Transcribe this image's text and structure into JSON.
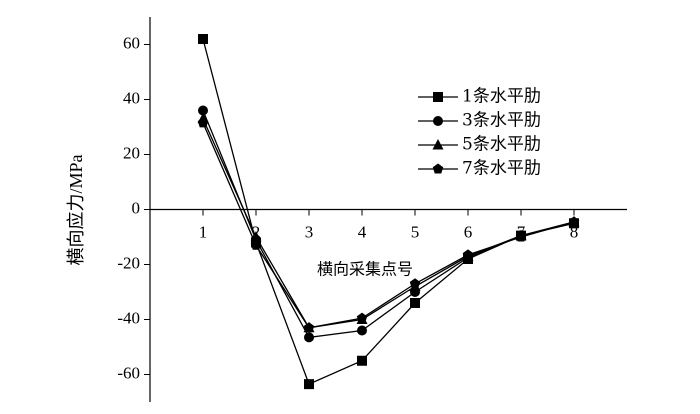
{
  "chart_data": {
    "type": "line",
    "x_label": "横向采集点号",
    "y_label": "横向应力/MPa",
    "x": [
      1,
      2,
      3,
      4,
      5,
      6,
      7,
      8
    ],
    "series": [
      {
        "name": "1条水平肋",
        "color": "#000000",
        "marker": "square",
        "values": [
          62,
          -12,
          -63.5,
          -55,
          -34,
          -18,
          -9.5,
          -5
        ]
      },
      {
        "name": "3条水平肋",
        "color": "#000000",
        "marker": "circle",
        "values": [
          36,
          -11,
          -46.5,
          -44,
          -30,
          -17.5,
          -9.5,
          -5
        ]
      },
      {
        "name": "5条水平肋",
        "color": "#000000",
        "marker": "triangle",
        "values": [
          33,
          -10,
          -43,
          -40,
          -28,
          -17,
          -9.5,
          -4.5
        ]
      },
      {
        "name": "7条水平肋",
        "color": "#000000",
        "marker": "pentagon",
        "values": [
          31.5,
          -13,
          -43,
          -39.5,
          -27,
          -16.5,
          -10,
          -4.5
        ]
      }
    ],
    "xlim": [
      0,
      9
    ],
    "xticks": [
      1,
      2,
      3,
      4,
      5,
      6,
      7,
      8
    ],
    "ylim": [
      -70,
      70
    ],
    "yticks": [
      -60,
      -40,
      -20,
      0,
      20,
      40,
      60
    ],
    "legend": "upper right"
  }
}
